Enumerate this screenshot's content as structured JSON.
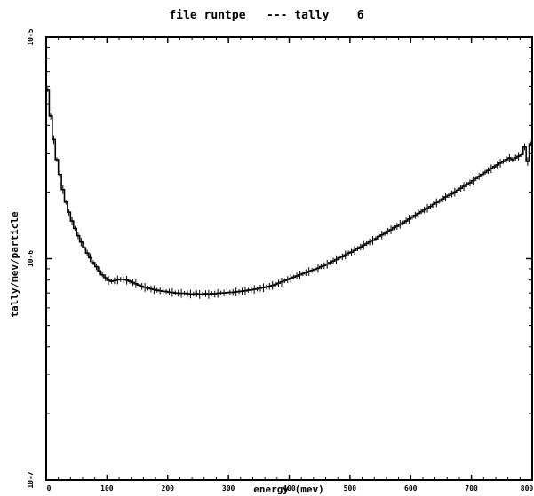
{
  "chart_data": {
    "type": "line",
    "title": "file runtpe   --- tally    6",
    "xlabel": "energy (mev)",
    "ylabel": "tally/mev/particle",
    "log_y": true,
    "xlim": [
      0,
      800
    ],
    "ylim": [
      1e-07,
      1e-05
    ],
    "x_ticks": [
      "0",
      "100",
      "200",
      "300",
      "400",
      "500",
      "600",
      "700",
      "800"
    ],
    "y_ticks": [
      "10-7",
      "10-6",
      "10-5"
    ],
    "grid": false,
    "legend": "none",
    "style": "histogram-with-error-bars",
    "series": [
      {
        "bin_edges": [
          0,
          5,
          10,
          15,
          20,
          25,
          30,
          35,
          40,
          45,
          50,
          55,
          60,
          65,
          70,
          75,
          80,
          85,
          90,
          95,
          100,
          105,
          110,
          115,
          120,
          125,
          130,
          135,
          140,
          145,
          150,
          155,
          160,
          165,
          170,
          175,
          180,
          185,
          190,
          195,
          200,
          205,
          210,
          215,
          220,
          225,
          230,
          235,
          240,
          245,
          250,
          255,
          260,
          265,
          270,
          275,
          280,
          285,
          290,
          295,
          300,
          305,
          310,
          315,
          320,
          325,
          330,
          335,
          340,
          345,
          350,
          355,
          360,
          365,
          370,
          375,
          380,
          385,
          390,
          395,
          400,
          405,
          410,
          415,
          420,
          425,
          430,
          435,
          440,
          445,
          450,
          455,
          460,
          465,
          470,
          475,
          480,
          485,
          490,
          495,
          500,
          505,
          510,
          515,
          520,
          525,
          530,
          535,
          540,
          545,
          550,
          555,
          560,
          565,
          570,
          575,
          580,
          585,
          590,
          595,
          600,
          605,
          610,
          615,
          620,
          625,
          630,
          635,
          640,
          645,
          650,
          655,
          660,
          665,
          670,
          675,
          680,
          685,
          690,
          695,
          700,
          705,
          710,
          715,
          720,
          725,
          730,
          735,
          740,
          745,
          750,
          755,
          760,
          765,
          770,
          775,
          780,
          785,
          790,
          795,
          800
        ],
        "values": [
          5.8e-06,
          4.4e-06,
          3.45e-06,
          2.8e-06,
          2.4e-06,
          2.05e-06,
          1.8e-06,
          1.62e-06,
          1.48e-06,
          1.37e-06,
          1.27e-06,
          1.19e-06,
          1.12e-06,
          1.06e-06,
          1.01e-06,
          9.6e-07,
          9.2e-07,
          8.8e-07,
          8.45e-07,
          8.2e-07,
          7.98e-07,
          7.9e-07,
          7.95e-07,
          8.02e-07,
          8.06e-07,
          8.05e-07,
          8e-07,
          7.9e-07,
          7.8e-07,
          7.7e-07,
          7.6e-07,
          7.5e-07,
          7.42e-07,
          7.36e-07,
          7.3e-07,
          7.25e-07,
          7.2e-07,
          7.16e-07,
          7.12e-07,
          7.1e-07,
          7.06e-07,
          7.04e-07,
          7e-07,
          6.98e-07,
          6.97e-07,
          6.97e-07,
          6.95e-07,
          6.93e-07,
          6.92e-07,
          6.95e-07,
          6.9e-07,
          6.92e-07,
          6.95e-07,
          6.9e-07,
          6.96e-07,
          6.92e-07,
          6.97e-07,
          6.99e-07,
          7e-07,
          7.02e-07,
          7.05e-07,
          7.04e-07,
          7.08e-07,
          7.1e-07,
          7.13e-07,
          7.15e-07,
          7.2e-07,
          7.23e-07,
          7.27e-07,
          7.3e-07,
          7.36e-07,
          7.4e-07,
          7.45e-07,
          7.5e-07,
          7.57e-07,
          7.65e-07,
          7.75e-07,
          7.85e-07,
          7.95e-07,
          8.05e-07,
          8.15e-07,
          8.25e-07,
          8.35e-07,
          8.45e-07,
          8.55e-07,
          8.65e-07,
          8.75e-07,
          8.85e-07,
          8.95e-07,
          9.05e-07,
          9.2e-07,
          9.3e-07,
          9.45e-07,
          9.6e-07,
          9.75e-07,
          9.9e-07,
          1.01e-06,
          1.02e-06,
          1.04e-06,
          1.06e-06,
          1.07e-06,
          1.09e-06,
          1.11e-06,
          1.13e-06,
          1.15e-06,
          1.17e-06,
          1.19e-06,
          1.21e-06,
          1.23e-06,
          1.26e-06,
          1.28e-06,
          1.3e-06,
          1.33e-06,
          1.35e-06,
          1.38e-06,
          1.4e-06,
          1.43e-06,
          1.45e-06,
          1.48e-06,
          1.51e-06,
          1.54e-06,
          1.57e-06,
          1.6e-06,
          1.63e-06,
          1.66e-06,
          1.69e-06,
          1.72e-06,
          1.76e-06,
          1.79e-06,
          1.82e-06,
          1.86e-06,
          1.9e-06,
          1.93e-06,
          1.96e-06,
          2e-06,
          2.04e-06,
          2.08e-06,
          2.12e-06,
          2.16e-06,
          2.2e-06,
          2.25e-06,
          2.3e-06,
          2.35e-06,
          2.4e-06,
          2.45e-06,
          2.5e-06,
          2.55e-06,
          2.6e-06,
          2.65e-06,
          2.7e-06,
          2.75e-06,
          2.8e-06,
          2.85e-06,
          2.8e-06,
          2.85e-06,
          2.9e-06,
          2.95e-06,
          3.2e-06,
          2.75e-06,
          3.3e-06
        ]
      }
    ]
  }
}
